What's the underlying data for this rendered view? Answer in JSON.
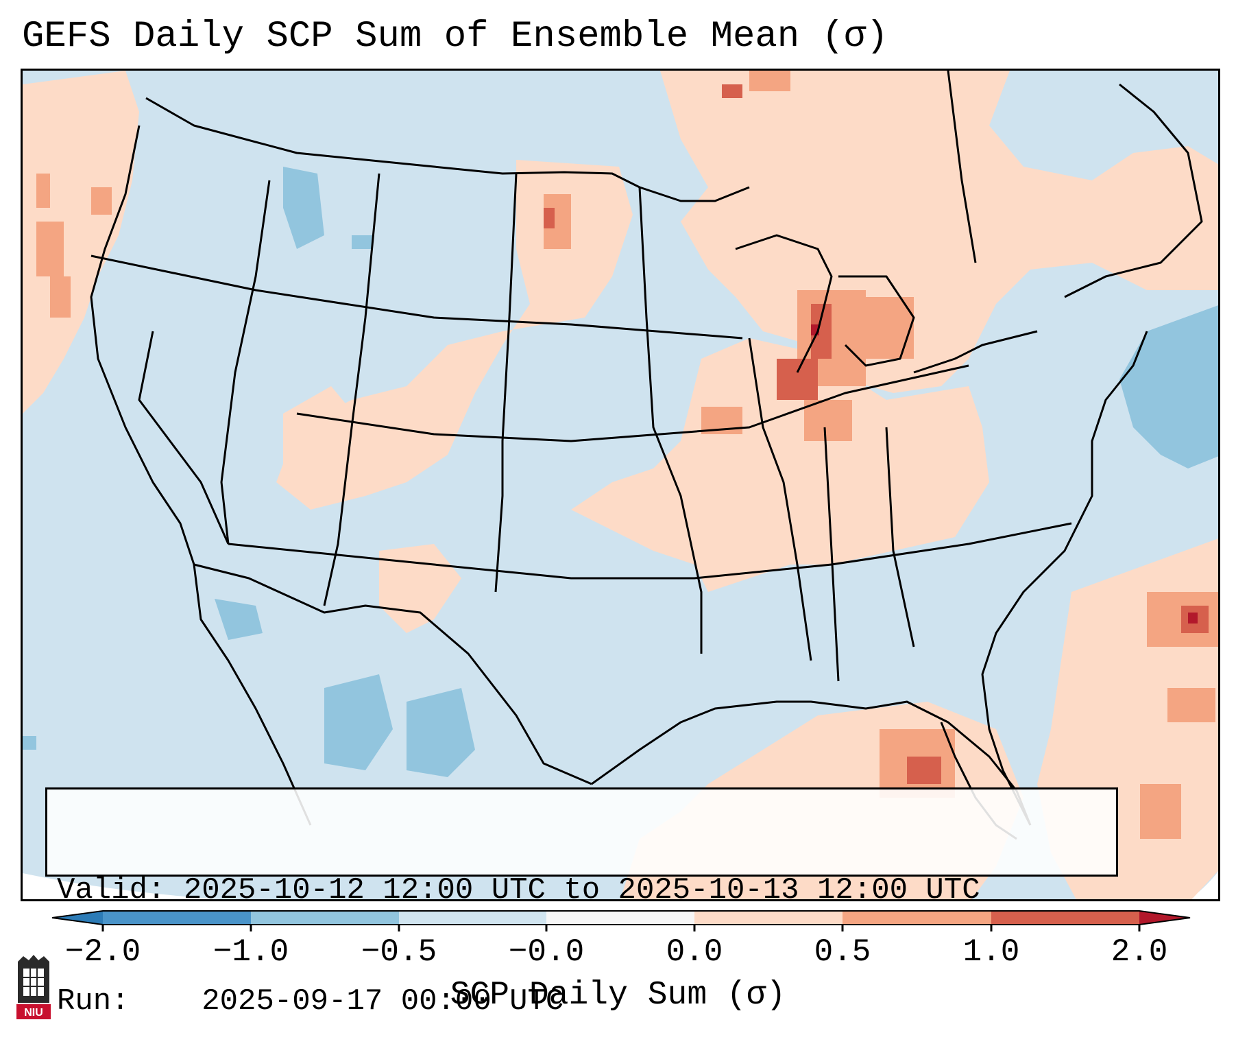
{
  "title": "GEFS Daily SCP Sum of Ensemble Mean (σ)",
  "info": {
    "valid_label": "Valid:",
    "valid_value": "2025-10-12 12:00 UTC to 2025-10-13 12:00 UTC",
    "run_label": "Run:",
    "run_value": "2025-09-17 00:00 UTC"
  },
  "colorbar": {
    "label": "SCP Daily Sum (σ)",
    "ticks": [
      "−2.0",
      "−1.0",
      "−0.5",
      "−0.0",
      "0.0",
      "0.5",
      "1.0",
      "2.0"
    ],
    "bins": [
      {
        "range": "below -2.0",
        "color": "#2c7bb6"
      },
      {
        "range": "-2.0 to -1.0",
        "color": "#4a94c9"
      },
      {
        "range": "-1.0 to -0.5",
        "color": "#92c5de"
      },
      {
        "range": "-0.5 to -0.0",
        "color": "#d1e5f0"
      },
      {
        "range": "-0.0 to 0.0",
        "color": "#f7f7f7"
      },
      {
        "range": "0.0 to 0.5",
        "color": "#fddbc7"
      },
      {
        "range": "0.5 to 1.0",
        "color": "#f4a582"
      },
      {
        "range": "1.0 to 2.0",
        "color": "#d6604d"
      },
      {
        "range": "above 2.0",
        "color": "#b2182b"
      }
    ]
  },
  "logo": {
    "name": "NIU",
    "text": "NIU"
  },
  "map": {
    "region": "Contiguous United States, southern Canada, northern Mexico, Gulf of Mexico, western Atlantic",
    "background_color": "#d1e5f0",
    "positive_color": "#fddbc7",
    "moderate_color": "#f4a582",
    "strong_color": "#d6604d",
    "extreme_color": "#b2182b",
    "negative_color": "#92c5de"
  }
}
